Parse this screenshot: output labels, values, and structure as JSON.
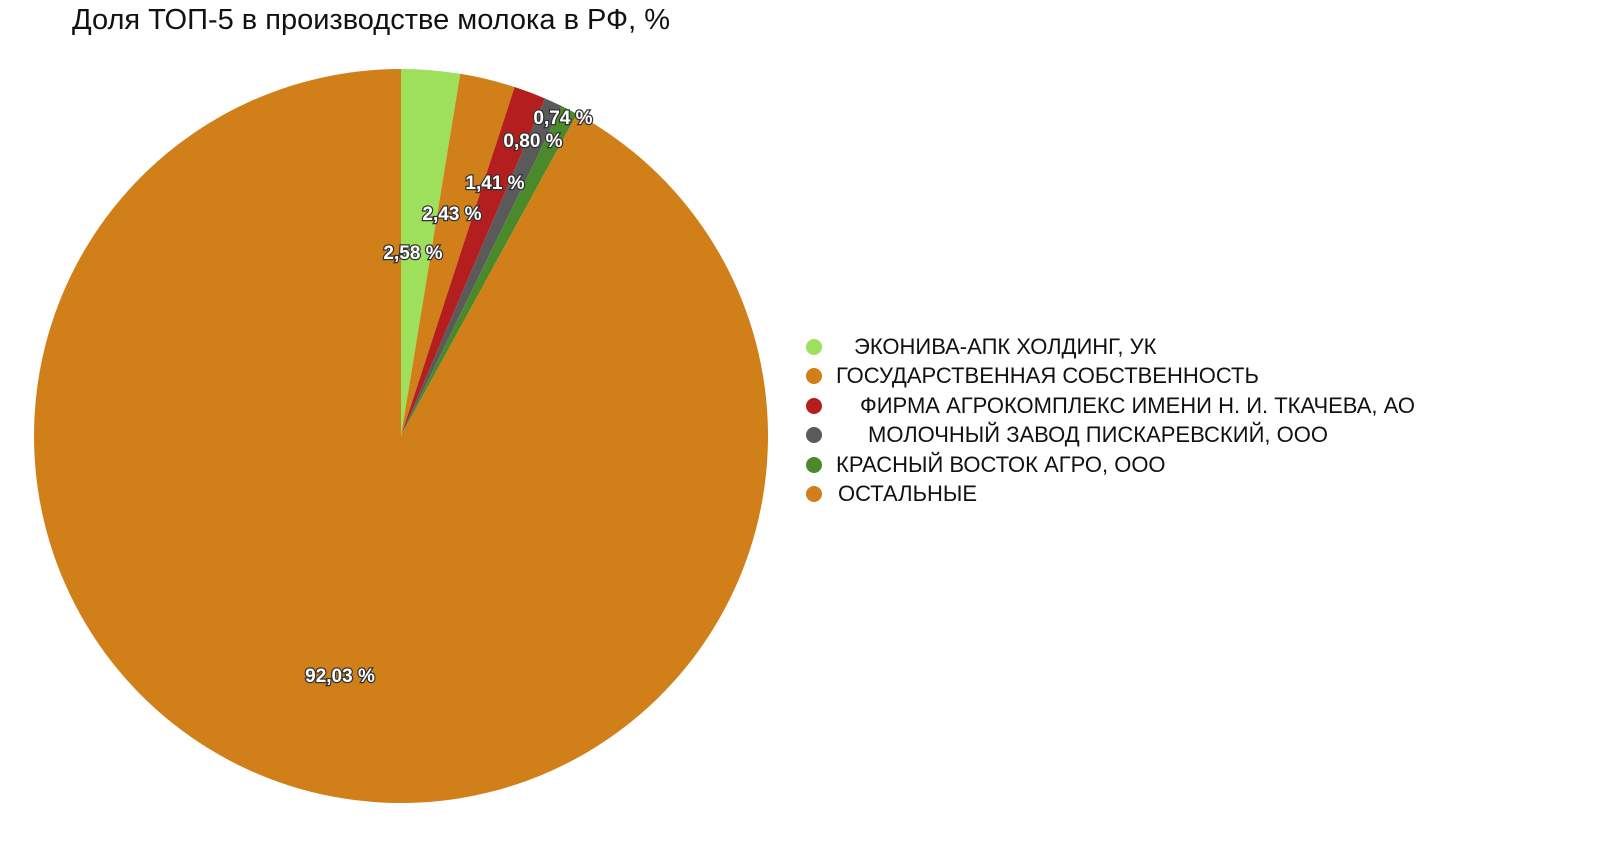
{
  "chart_data": {
    "type": "pie",
    "title": "Доля ТОП-5 в производстве молока в РФ, %",
    "start_angle_deg": 0,
    "direction": "clockwise",
    "legend_position": "right",
    "slices": [
      {
        "name": "ЭКОНИВА-АПК ХОЛДИНГ, УК",
        "value": 2.58,
        "label": "2,58 %",
        "color": "#9ee05c"
      },
      {
        "name": "ГОСУДАРСТВЕННАЯ СОБСТВЕННОСТЬ",
        "value": 2.43,
        "label": "2,43 %",
        "color": "#d17f18"
      },
      {
        "name": "ФИРМА АГРОКОМПЛЕКС ИМЕНИ Н. И. ТКАЧЕВА, АО",
        "value": 1.41,
        "label": "1,41 %",
        "color": "#b51e1e"
      },
      {
        "name": "МОЛОЧНЫЙ ЗАВОД ПИСКАРЕВСКИЙ, ООО",
        "value": 0.8,
        "label": "0,80 %",
        "color": "#5a5a5a"
      },
      {
        "name": "КРАСНЫЙ ВОСТОК АГРО, ООО",
        "value": 0.74,
        "label": "0,74 %",
        "color": "#4b8a2a"
      },
      {
        "name": "ОСТАЛЬНЫЕ",
        "value": 92.03,
        "label": "92,03 %",
        "color": "#d17f18"
      }
    ]
  }
}
